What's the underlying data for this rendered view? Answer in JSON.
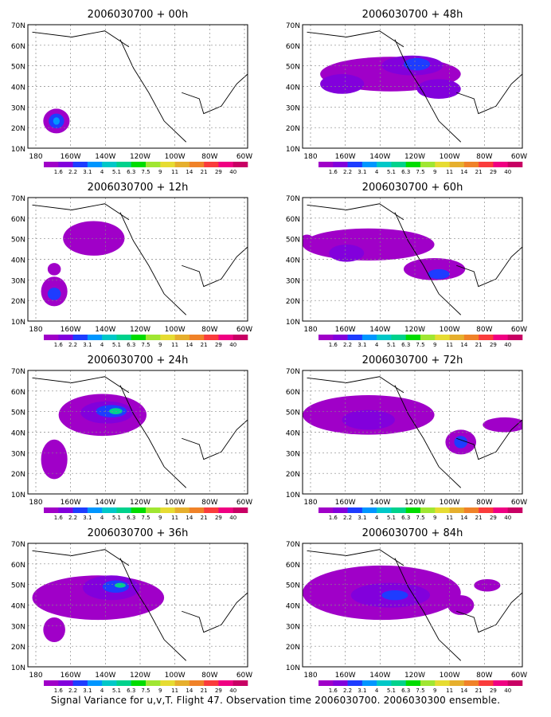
{
  "panels": [
    {
      "title": "2006030700 + 00h"
    },
    {
      "title": "2006030700 + 48h"
    },
    {
      "title": "2006030700 + 12h"
    },
    {
      "title": "2006030700 + 60h"
    },
    {
      "title": "2006030700 + 24h"
    },
    {
      "title": "2006030700 + 72h"
    },
    {
      "title": "2006030700 + 36h"
    },
    {
      "title": "2006030700 + 84h"
    }
  ],
  "lat_labels": [
    "70N",
    "60N",
    "50N",
    "40N",
    "30N",
    "20N",
    "10N"
  ],
  "lon_labels": [
    "180",
    "160W",
    "140W",
    "120W",
    "100W",
    "80W",
    "60W"
  ],
  "colorbar": {
    "labels": [
      "1.6",
      "2.2",
      "3.1",
      "4",
      "5.1",
      "6.3",
      "7.5",
      "9",
      "11",
      "14",
      "21",
      "29",
      "40"
    ],
    "colors": [
      "#a000c8",
      "#8200dc",
      "#1e3cff",
      "#0096ff",
      "#00c8c8",
      "#00d28c",
      "#00dc00",
      "#a0e632",
      "#e6dc32",
      "#e6af2d",
      "#f08228",
      "#fa3c3c",
      "#f00082",
      "#c80064"
    ]
  },
  "footer": "Signal Variance for u,v,T. Flight 47. Observation time 2006030700. 2006030300 ensemble."
}
